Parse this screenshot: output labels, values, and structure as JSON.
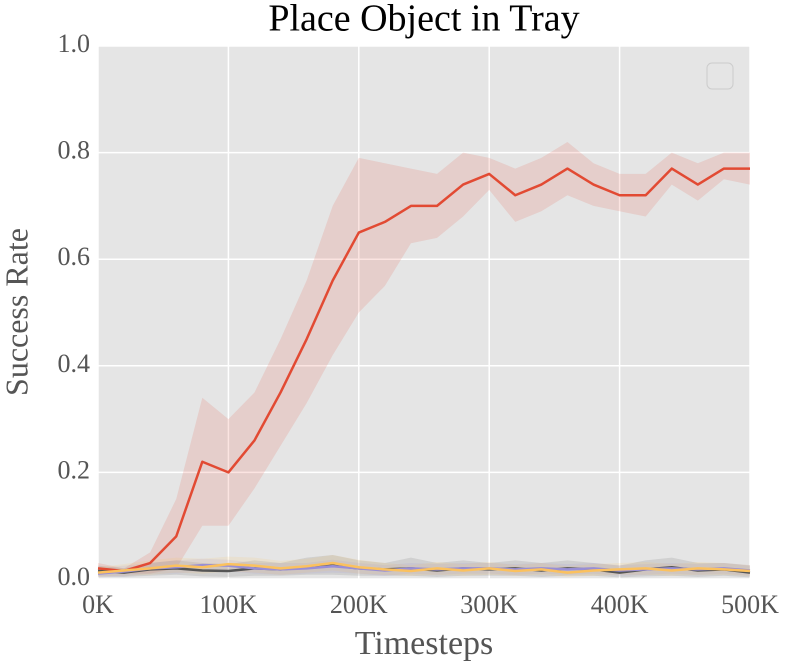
{
  "chart_data": {
    "type": "line",
    "title": "Place Object in Tray",
    "x_label": "Timesteps",
    "y_label": "Success Rate",
    "x": [
      0,
      20000,
      40000,
      60000,
      80000,
      100000,
      120000,
      140000,
      160000,
      180000,
      200000,
      220000,
      240000,
      260000,
      280000,
      300000,
      320000,
      340000,
      360000,
      380000,
      400000,
      420000,
      440000,
      460000,
      480000,
      500000
    ],
    "series": [
      {
        "color": "#e24a33",
        "values": [
          0.02,
          0.015,
          0.03,
          0.08,
          0.22,
          0.2,
          0.26,
          0.35,
          0.45,
          0.56,
          0.65,
          0.67,
          0.7,
          0.7,
          0.74,
          0.76,
          0.72,
          0.74,
          0.77,
          0.74,
          0.72,
          0.72,
          0.77,
          0.74,
          0.77,
          0.77
        ],
        "upper": [
          0.03,
          0.02,
          0.05,
          0.15,
          0.34,
          0.3,
          0.35,
          0.45,
          0.56,
          0.7,
          0.79,
          0.78,
          0.77,
          0.76,
          0.8,
          0.79,
          0.77,
          0.79,
          0.82,
          0.78,
          0.76,
          0.76,
          0.8,
          0.78,
          0.8,
          0.8
        ],
        "lower": [
          0.01,
          0.01,
          0.01,
          0.02,
          0.1,
          0.1,
          0.17,
          0.25,
          0.33,
          0.42,
          0.5,
          0.55,
          0.63,
          0.64,
          0.68,
          0.73,
          0.67,
          0.69,
          0.72,
          0.7,
          0.69,
          0.68,
          0.74,
          0.71,
          0.75,
          0.74
        ]
      },
      {
        "color": "#555555",
        "values": [
          0.015,
          0.012,
          0.018,
          0.02,
          0.016,
          0.015,
          0.02,
          0.018,
          0.022,
          0.025,
          0.02,
          0.018,
          0.02,
          0.016,
          0.02,
          0.018,
          0.02,
          0.016,
          0.02,
          0.018,
          0.012,
          0.018,
          0.022,
          0.016,
          0.018,
          0.012
        ],
        "upper": [
          0.025,
          0.02,
          0.03,
          0.035,
          0.03,
          0.028,
          0.035,
          0.03,
          0.04,
          0.045,
          0.035,
          0.03,
          0.04,
          0.03,
          0.035,
          0.03,
          0.035,
          0.03,
          0.035,
          0.03,
          0.025,
          0.035,
          0.04,
          0.03,
          0.03,
          0.025
        ],
        "lower": [
          0.005,
          0.004,
          0.006,
          0.008,
          0.005,
          0.004,
          0.006,
          0.006,
          0.008,
          0.008,
          0.006,
          0.006,
          0.006,
          0.004,
          0.006,
          0.006,
          0.006,
          0.004,
          0.006,
          0.006,
          0.003,
          0.005,
          0.006,
          0.004,
          0.006,
          0.003
        ]
      },
      {
        "color": "#988ed5",
        "values": [
          0.01,
          0.014,
          0.02,
          0.022,
          0.026,
          0.025,
          0.02,
          0.018,
          0.02,
          0.024,
          0.02,
          0.016,
          0.02,
          0.018,
          0.02,
          0.02,
          0.018,
          0.02,
          0.018,
          0.02,
          0.016,
          0.018,
          0.02,
          0.018,
          0.02,
          0.016
        ],
        "upper": [
          0.02,
          0.025,
          0.03,
          0.035,
          0.038,
          0.036,
          0.03,
          0.03,
          0.03,
          0.036,
          0.03,
          0.026,
          0.03,
          0.028,
          0.03,
          0.03,
          0.028,
          0.03,
          0.028,
          0.03,
          0.026,
          0.028,
          0.03,
          0.028,
          0.03,
          0.026
        ],
        "lower": [
          0.003,
          0.005,
          0.01,
          0.01,
          0.014,
          0.014,
          0.01,
          0.008,
          0.01,
          0.012,
          0.01,
          0.006,
          0.01,
          0.008,
          0.01,
          0.01,
          0.008,
          0.01,
          0.008,
          0.01,
          0.006,
          0.008,
          0.01,
          0.008,
          0.01,
          0.006
        ]
      },
      {
        "color": "#fbc15e",
        "values": [
          0.012,
          0.016,
          0.02,
          0.025,
          0.022,
          0.028,
          0.025,
          0.02,
          0.024,
          0.03,
          0.022,
          0.018,
          0.015,
          0.02,
          0.016,
          0.02,
          0.015,
          0.018,
          0.012,
          0.016,
          0.018,
          0.02,
          0.016,
          0.02,
          0.018,
          0.015
        ],
        "upper": [
          0.022,
          0.028,
          0.035,
          0.04,
          0.038,
          0.042,
          0.04,
          0.034,
          0.038,
          0.045,
          0.036,
          0.03,
          0.026,
          0.032,
          0.028,
          0.032,
          0.026,
          0.03,
          0.024,
          0.028,
          0.03,
          0.032,
          0.028,
          0.032,
          0.03,
          0.026
        ],
        "lower": [
          0.004,
          0.006,
          0.008,
          0.012,
          0.01,
          0.014,
          0.012,
          0.008,
          0.012,
          0.016,
          0.01,
          0.008,
          0.006,
          0.008,
          0.006,
          0.008,
          0.006,
          0.008,
          0.004,
          0.006,
          0.008,
          0.008,
          0.006,
          0.008,
          0.008,
          0.006
        ]
      }
    ],
    "xlim": [
      0,
      500000
    ],
    "xticks": [
      {
        "value": 0,
        "label": "0K"
      },
      {
        "value": 100000,
        "label": "100K"
      },
      {
        "value": 200000,
        "label": "200K"
      },
      {
        "value": 300000,
        "label": "300K"
      },
      {
        "value": 400000,
        "label": "400K"
      },
      {
        "value": 500000,
        "label": "500K"
      }
    ],
    "ylim": [
      0,
      1
    ],
    "yticks": [
      {
        "value": 0,
        "label": "0.0"
      },
      {
        "value": 0.2,
        "label": "0.2"
      },
      {
        "value": 0.4,
        "label": "0.4"
      },
      {
        "value": 0.6,
        "label": "0.6"
      },
      {
        "value": 0.8,
        "label": "0.8"
      },
      {
        "value": 1,
        "label": "1.0"
      }
    ],
    "grid": true,
    "legend": "upper right"
  }
}
